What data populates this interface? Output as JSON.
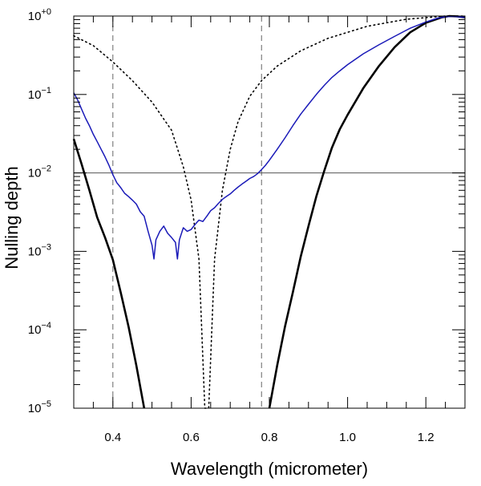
{
  "chart_data": {
    "type": "line",
    "xlabel": "Wavelength (micrometer)",
    "ylabel": "Nulling depth",
    "xlim": [
      0.3,
      1.3
    ],
    "ylim": [
      1e-05,
      1
    ],
    "yscale": "log",
    "x_ticks": [
      {
        "value": 0.4,
        "label": "0.4"
      },
      {
        "value": 0.6,
        "label": "0.6"
      },
      {
        "value": 0.8,
        "label": "0.8"
      },
      {
        "value": 1.0,
        "label": "1.0"
      },
      {
        "value": 1.2,
        "label": "1.2"
      }
    ],
    "y_ticks": [
      {
        "value": 1e-05,
        "base": "10",
        "exp": "−5"
      },
      {
        "value": 0.0001,
        "base": "10",
        "exp": "−4"
      },
      {
        "value": 0.001,
        "base": "10",
        "exp": "−3"
      },
      {
        "value": 0.01,
        "base": "10",
        "exp": "−2"
      },
      {
        "value": 0.1,
        "base": "10",
        "exp": "−1"
      },
      {
        "value": 1,
        "base": "10",
        "exp": "+0"
      }
    ],
    "reference_lines": [
      {
        "orientation": "vertical",
        "x": 0.4,
        "style": "dashed"
      },
      {
        "orientation": "vertical",
        "x": 0.78,
        "style": "dashed"
      },
      {
        "orientation": "horizontal",
        "y": 0.01,
        "style": "solid"
      }
    ],
    "series": [
      {
        "style": "solid-thick",
        "color": "#000000",
        "points": [
          [
            0.3,
            0.027
          ],
          [
            0.32,
            0.013
          ],
          [
            0.34,
            0.006
          ],
          [
            0.36,
            0.0027
          ],
          [
            0.38,
            0.0015
          ],
          [
            0.4,
            0.00078
          ],
          [
            0.42,
            0.0003
          ],
          [
            0.44,
            0.00011
          ],
          [
            0.46,
            3.5e-05
          ],
          [
            0.48,
            1e-05
          ]
        ]
      },
      {
        "style": "solid-thick",
        "color": "#000000",
        "points": [
          [
            0.8,
            1e-05
          ],
          [
            0.82,
            3.5e-05
          ],
          [
            0.84,
            0.00011
          ],
          [
            0.86,
            0.0003
          ],
          [
            0.88,
            0.00085
          ],
          [
            0.9,
            0.0021
          ],
          [
            0.92,
            0.005
          ],
          [
            0.94,
            0.0105
          ],
          [
            0.96,
            0.021
          ],
          [
            0.98,
            0.036
          ],
          [
            1.0,
            0.055
          ],
          [
            1.04,
            0.12
          ],
          [
            1.08,
            0.23
          ],
          [
            1.12,
            0.4
          ],
          [
            1.16,
            0.62
          ],
          [
            1.2,
            0.82
          ],
          [
            1.24,
            0.96
          ],
          [
            1.26,
            1.0
          ],
          [
            1.28,
            0.99
          ],
          [
            1.3,
            0.96
          ]
        ]
      },
      {
        "style": "dotted",
        "color": "#000000",
        "points": [
          [
            0.3,
            0.56
          ],
          [
            0.35,
            0.42
          ],
          [
            0.4,
            0.26
          ],
          [
            0.45,
            0.15
          ],
          [
            0.5,
            0.08
          ],
          [
            0.55,
            0.035
          ],
          [
            0.58,
            0.012
          ],
          [
            0.6,
            0.0045
          ],
          [
            0.62,
            0.0008
          ],
          [
            0.635,
            1e-05
          ],
          [
            0.645,
            1e-05
          ],
          [
            0.66,
            0.0008
          ],
          [
            0.68,
            0.006
          ],
          [
            0.7,
            0.02
          ],
          [
            0.72,
            0.045
          ],
          [
            0.75,
            0.095
          ],
          [
            0.78,
            0.15
          ],
          [
            0.82,
            0.23
          ],
          [
            0.88,
            0.36
          ],
          [
            0.95,
            0.52
          ],
          [
            1.05,
            0.74
          ],
          [
            1.15,
            0.91
          ],
          [
            1.25,
            1.0
          ],
          [
            1.3,
            1.0
          ]
        ]
      },
      {
        "style": "solid",
        "color": "#1a1ab8",
        "points": [
          [
            0.3,
            0.105
          ],
          [
            0.31,
            0.085
          ],
          [
            0.32,
            0.065
          ],
          [
            0.33,
            0.05
          ],
          [
            0.34,
            0.04
          ],
          [
            0.35,
            0.031
          ],
          [
            0.36,
            0.025
          ],
          [
            0.37,
            0.02
          ],
          [
            0.38,
            0.016
          ],
          [
            0.39,
            0.0125
          ],
          [
            0.4,
            0.0095
          ],
          [
            0.41,
            0.0075
          ],
          [
            0.42,
            0.0065
          ],
          [
            0.43,
            0.0055
          ],
          [
            0.44,
            0.005
          ],
          [
            0.45,
            0.0045
          ],
          [
            0.46,
            0.004
          ],
          [
            0.47,
            0.0032
          ],
          [
            0.48,
            0.0028
          ],
          [
            0.49,
            0.0018
          ],
          [
            0.5,
            0.0012
          ],
          [
            0.505,
            0.0008
          ],
          [
            0.51,
            0.0014
          ],
          [
            0.52,
            0.0018
          ],
          [
            0.53,
            0.0021
          ],
          [
            0.54,
            0.0017
          ],
          [
            0.55,
            0.0015
          ],
          [
            0.56,
            0.0013
          ],
          [
            0.565,
            0.0008
          ],
          [
            0.57,
            0.0014
          ],
          [
            0.58,
            0.002
          ],
          [
            0.59,
            0.0018
          ],
          [
            0.6,
            0.0019
          ],
          [
            0.61,
            0.0022
          ],
          [
            0.62,
            0.0025
          ],
          [
            0.63,
            0.0024
          ],
          [
            0.64,
            0.0028
          ],
          [
            0.65,
            0.0033
          ],
          [
            0.66,
            0.0036
          ],
          [
            0.67,
            0.0041
          ],
          [
            0.68,
            0.0046
          ],
          [
            0.69,
            0.005
          ],
          [
            0.7,
            0.0054
          ],
          [
            0.71,
            0.006
          ],
          [
            0.72,
            0.0066
          ],
          [
            0.73,
            0.0072
          ],
          [
            0.74,
            0.0078
          ],
          [
            0.75,
            0.0085
          ],
          [
            0.76,
            0.009
          ],
          [
            0.77,
            0.0098
          ],
          [
            0.78,
            0.011
          ],
          [
            0.79,
            0.0125
          ],
          [
            0.8,
            0.0145
          ],
          [
            0.82,
            0.02
          ],
          [
            0.84,
            0.028
          ],
          [
            0.86,
            0.04
          ],
          [
            0.88,
            0.056
          ],
          [
            0.9,
            0.075
          ],
          [
            0.92,
            0.1
          ],
          [
            0.94,
            0.13
          ],
          [
            0.96,
            0.165
          ],
          [
            0.98,
            0.2
          ],
          [
            1.0,
            0.24
          ],
          [
            1.04,
            0.33
          ],
          [
            1.08,
            0.43
          ],
          [
            1.12,
            0.55
          ],
          [
            1.16,
            0.7
          ],
          [
            1.2,
            0.84
          ],
          [
            1.23,
            0.94
          ],
          [
            1.25,
            0.98
          ],
          [
            1.27,
            0.99
          ],
          [
            1.3,
            0.96
          ]
        ]
      }
    ]
  }
}
